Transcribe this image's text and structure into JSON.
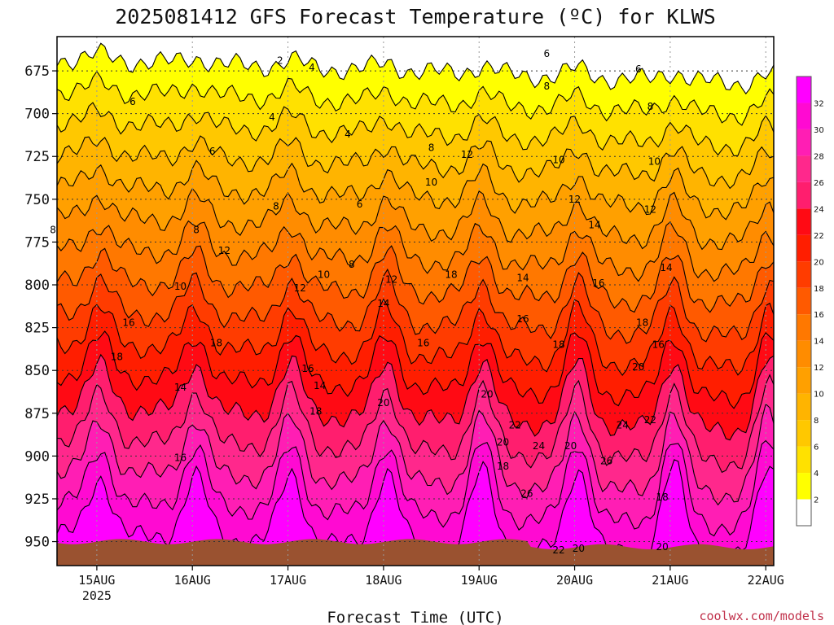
{
  "chart_data": {
    "type": "heatmap",
    "title": "2025081412 GFS Forecast Temperature (ºC) for KLWS",
    "xlabel": "Forecast Time (UTC)",
    "ylabel": "",
    "credit": "coolwx.com/models",
    "y_ticks": [
      "675",
      "700",
      "725",
      "750",
      "775",
      "800",
      "825",
      "850",
      "875",
      "900",
      "925",
      "950"
    ],
    "x_ticks": [
      {
        "label": "15AUG",
        "sub": "2025"
      },
      {
        "label": "16AUG",
        "sub": ""
      },
      {
        "label": "17AUG",
        "sub": ""
      },
      {
        "label": "18AUG",
        "sub": ""
      },
      {
        "label": "19AUG",
        "sub": ""
      },
      {
        "label": "20AUG",
        "sub": ""
      },
      {
        "label": "21AUG",
        "sub": ""
      },
      {
        "label": "22AUG",
        "sub": ""
      }
    ],
    "colorbar_labels": [
      "2",
      "4",
      "6",
      "8",
      "10",
      "12",
      "14",
      "16",
      "18",
      "20",
      "22",
      "24",
      "26",
      "28",
      "30",
      "32"
    ],
    "colorbar_colors": [
      "#ffffff",
      "#ffff00",
      "#ffe100",
      "#ffc800",
      "#ffb400",
      "#ffa000",
      "#ff8c00",
      "#ff7800",
      "#ff5a00",
      "#ff3c00",
      "#ff1e00",
      "#ff0a14",
      "#ff1e6e",
      "#ff288c",
      "#ff1eb4",
      "#ff0ad2",
      "#ff00ff"
    ],
    "contour_labels": [
      {
        "text": "2",
        "t": 58,
        "p": 669
      },
      {
        "text": "4",
        "t": 66,
        "p": 673
      },
      {
        "text": "4",
        "t": 56,
        "p": 702
      },
      {
        "text": "4",
        "t": 75,
        "p": 712
      },
      {
        "text": "6",
        "t": 21,
        "p": 693
      },
      {
        "text": "6",
        "t": 41,
        "p": 722
      },
      {
        "text": "6",
        "t": 78,
        "p": 753
      },
      {
        "text": "6",
        "t": 125,
        "p": 665
      },
      {
        "text": "6",
        "t": 148,
        "p": 674
      },
      {
        "text": "8",
        "t": 1,
        "p": 768
      },
      {
        "text": "8",
        "t": 37,
        "p": 768
      },
      {
        "text": "8",
        "t": 57,
        "p": 754
      },
      {
        "text": "8",
        "t": 76,
        "p": 788
      },
      {
        "text": "8",
        "t": 96,
        "p": 720
      },
      {
        "text": "8",
        "t": 125,
        "p": 684
      },
      {
        "text": "8",
        "t": 151,
        "p": 696
      },
      {
        "text": "10",
        "t": 33,
        "p": 801
      },
      {
        "text": "10",
        "t": 69,
        "p": 794
      },
      {
        "text": "10",
        "t": 96,
        "p": 740
      },
      {
        "text": "10",
        "t": 128,
        "p": 727
      },
      {
        "text": "10",
        "t": 152,
        "p": 728
      },
      {
        "text": "12",
        "t": 44,
        "p": 780
      },
      {
        "text": "12",
        "t": 63,
        "p": 802
      },
      {
        "text": "12",
        "t": 86,
        "p": 797
      },
      {
        "text": "12",
        "t": 105,
        "p": 724
      },
      {
        "text": "12",
        "t": 132,
        "p": 750
      },
      {
        "text": "12",
        "t": 151,
        "p": 756
      },
      {
        "text": "14",
        "t": 33,
        "p": 860
      },
      {
        "text": "14",
        "t": 68,
        "p": 859
      },
      {
        "text": "14",
        "t": 84,
        "p": 811
      },
      {
        "text": "14",
        "t": 119,
        "p": 796
      },
      {
        "text": "14",
        "t": 137,
        "p": 765
      },
      {
        "text": "14",
        "t": 155,
        "p": 790
      },
      {
        "text": "16",
        "t": 20,
        "p": 822
      },
      {
        "text": "16",
        "t": 33,
        "p": 901
      },
      {
        "text": "16",
        "t": 65,
        "p": 849
      },
      {
        "text": "16",
        "t": 94,
        "p": 834
      },
      {
        "text": "16",
        "t": 119,
        "p": 820
      },
      {
        "text": "16",
        "t": 138,
        "p": 799
      },
      {
        "text": "16",
        "t": 153,
        "p": 835
      },
      {
        "text": "18",
        "t": 17,
        "p": 842
      },
      {
        "text": "18",
        "t": 42,
        "p": 834
      },
      {
        "text": "18",
        "t": 67,
        "p": 874
      },
      {
        "text": "18",
        "t": 101,
        "p": 794
      },
      {
        "text": "18",
        "t": 128,
        "p": 835
      },
      {
        "text": "18",
        "t": 149,
        "p": 822
      },
      {
        "text": "18",
        "t": 114,
        "p": 906
      },
      {
        "text": "18",
        "t": 154,
        "p": 924
      },
      {
        "text": "20",
        "t": 84,
        "p": 869
      },
      {
        "text": "20",
        "t": 110,
        "p": 864
      },
      {
        "text": "20",
        "t": 114,
        "p": 892
      },
      {
        "text": "20",
        "t": 131,
        "p": 894
      },
      {
        "text": "20",
        "t": 148,
        "p": 848
      },
      {
        "text": "20",
        "t": 154,
        "p": 953
      },
      {
        "text": "20",
        "t": 133,
        "p": 954
      },
      {
        "text": "22",
        "t": 117,
        "p": 882
      },
      {
        "text": "22",
        "t": 151,
        "p": 879
      },
      {
        "text": "22",
        "t": 128,
        "p": 955
      },
      {
        "text": "24",
        "t": 123,
        "p": 894
      },
      {
        "text": "24",
        "t": 144,
        "p": 882
      },
      {
        "text": "26",
        "t": 120,
        "p": 922
      },
      {
        "text": "26",
        "t": 140,
        "p": 903
      }
    ]
  }
}
